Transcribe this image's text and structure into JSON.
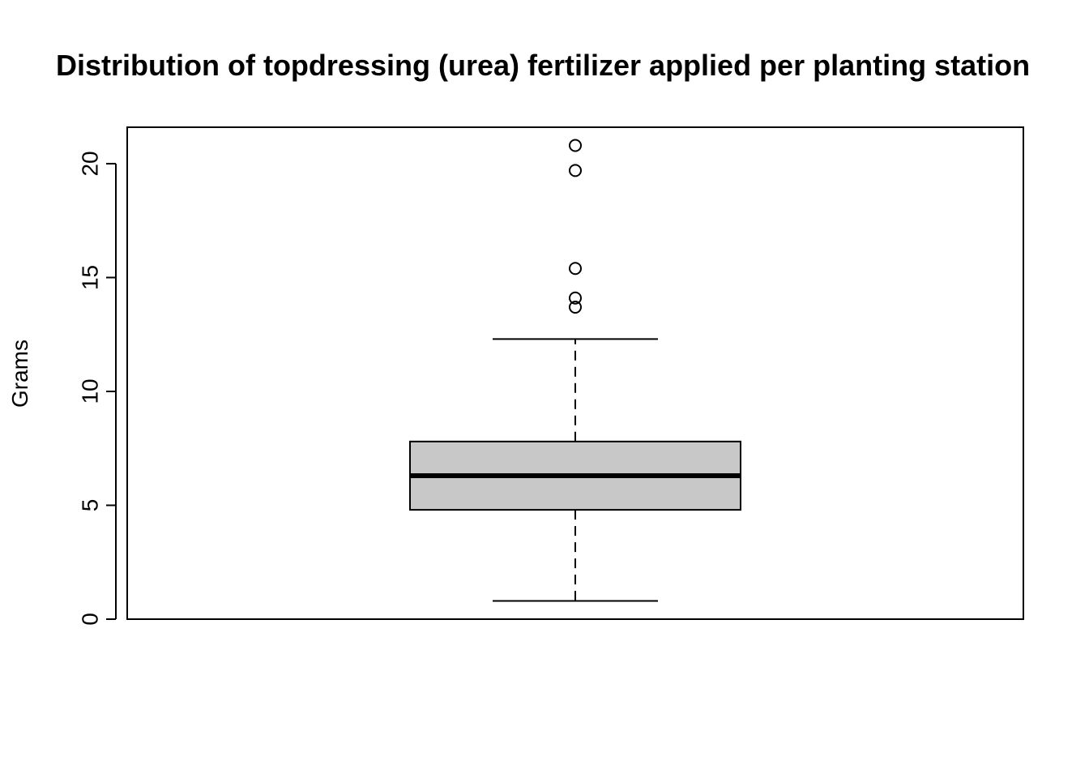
{
  "chart_data": {
    "type": "box",
    "title": "Distribution of topdressing (urea) fertilizer applied per planting station",
    "xlabel": "",
    "ylabel": "Grams",
    "ylim": [
      0,
      21.6
    ],
    "yticks": [
      0,
      5,
      10,
      15,
      20
    ],
    "yticklabels": [
      "0",
      "5",
      "10",
      "15",
      "20"
    ],
    "grid": false,
    "legend": "none",
    "box": {
      "whisker_low": 0.8,
      "q1": 4.8,
      "median": 6.3,
      "q3": 7.8,
      "whisker_high": 12.3
    },
    "outliers": [
      13.7,
      14.1,
      15.4,
      19.7,
      20.8
    ],
    "colors": {
      "box_fill": "#c8c8c8",
      "stroke": "#000000",
      "background": "#ffffff"
    }
  }
}
